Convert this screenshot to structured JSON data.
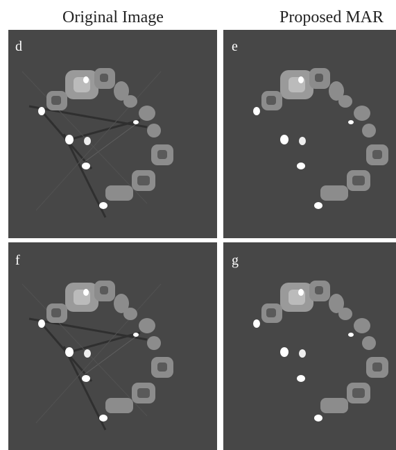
{
  "headers": [
    "Original Image",
    "Proposed MAR"
  ],
  "panels": [
    {
      "label": "d"
    },
    {
      "label": "e"
    },
    {
      "label": "f"
    },
    {
      "label": "g"
    }
  ]
}
